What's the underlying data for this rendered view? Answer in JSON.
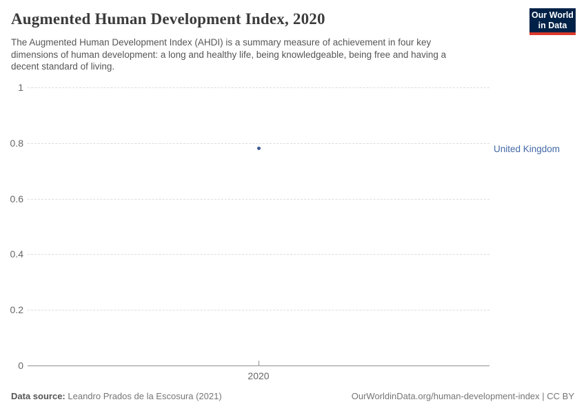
{
  "header": {
    "title": "Augmented Human Development Index, 2020",
    "subtitle_lines": [
      "The Augmented Human Development Index (AHDI) is a summary measure of achievement in four key",
      "dimensions of human development: a long and healthy life, being knowledgeable, being free and having a",
      "decent standard of living."
    ],
    "logo": {
      "line1": "Our World",
      "line2": "in Data",
      "bg_color": "#002147",
      "accent_color": "#d93a2d"
    }
  },
  "chart_data": {
    "type": "scatter",
    "title": "Augmented Human Development Index, 2020",
    "series": [
      {
        "name": "United Kingdom",
        "x": [
          2020
        ],
        "y": [
          0.78
        ],
        "color": "#3d5a8f",
        "label_color": "#4268a6"
      }
    ],
    "x_tick_labels": [
      "2020"
    ],
    "y_ticks": [
      0,
      0.2,
      0.4,
      0.6,
      0.8,
      1
    ],
    "y_tick_labels": [
      "0",
      "0.2",
      "0.4",
      "0.6",
      "0.8",
      "1"
    ],
    "ylim": [
      0,
      1
    ],
    "xlabel": "",
    "ylabel": "",
    "grid": "horizontal-dashed",
    "legend_position": "entity-label-right"
  },
  "footer": {
    "source_label": "Data source:",
    "source_value": "Leandro Prados de la Escosura (2021)",
    "citation": "OurWorldinData.org/human-development-index | CC BY"
  }
}
